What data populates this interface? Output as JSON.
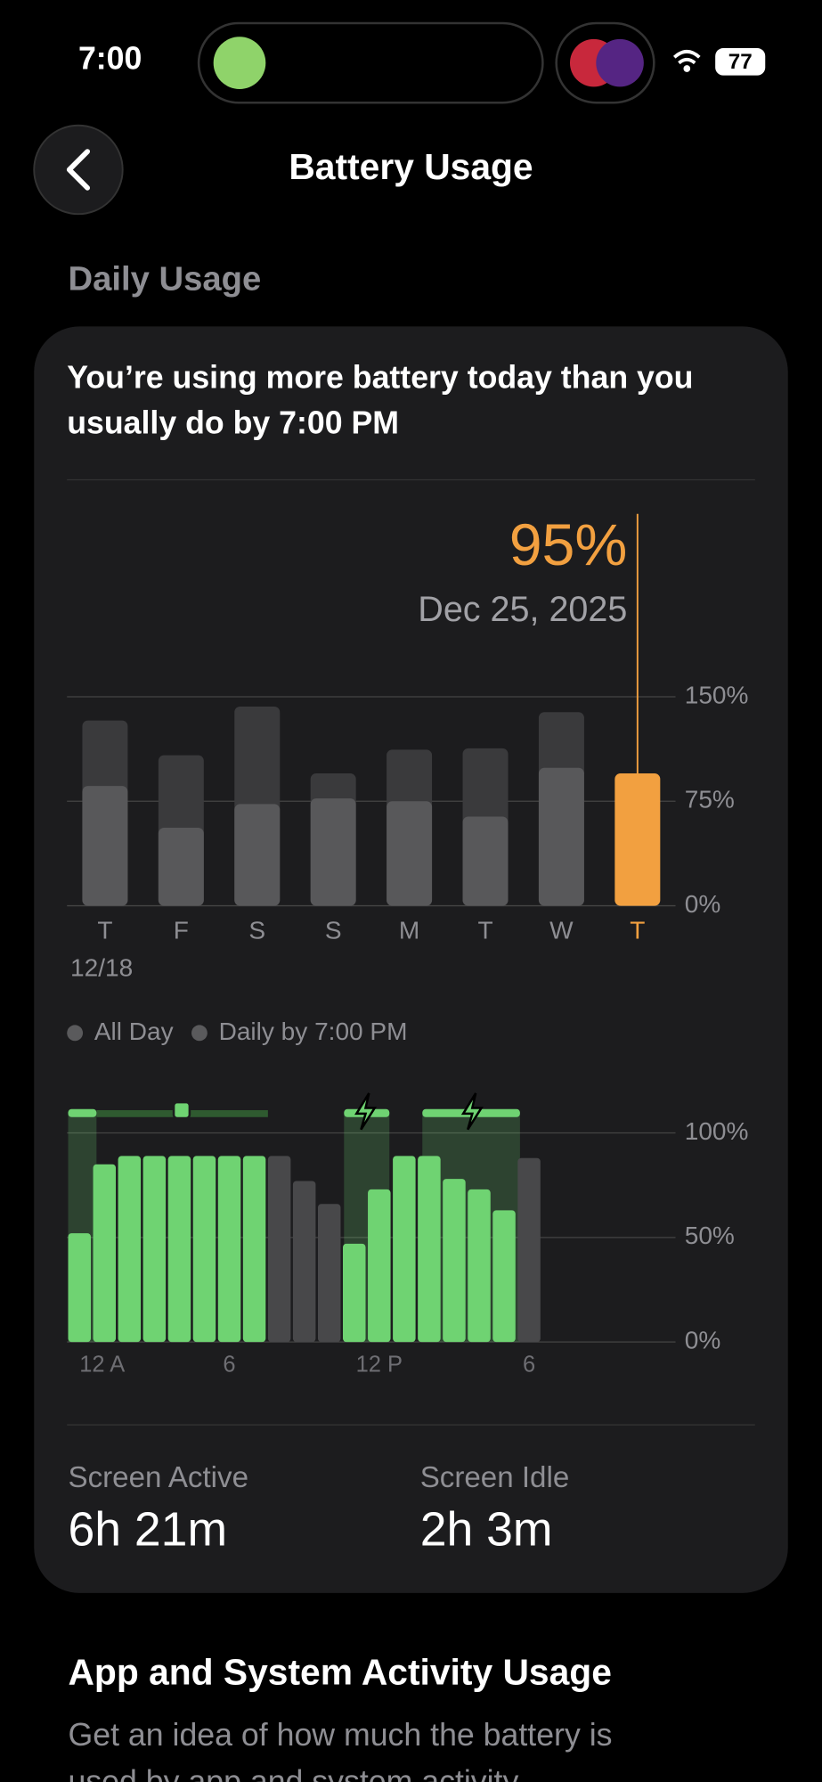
{
  "status_bar": {
    "time": "7:00",
    "battery": "77"
  },
  "header": {
    "title": "Battery Usage"
  },
  "daily_usage": {
    "section_title": "Daily Usage",
    "message": [
      "You’re using more battery today than you",
      "usually do by 7:00 PM"
    ],
    "date": "Dec 25, 2025"
  },
  "chart_data": [
    {
      "type": "bar",
      "categories": [
        "T",
        "F",
        "S",
        "S",
        "M",
        "T",
        "W",
        "T"
      ],
      "first_date": "12/18",
      "series": [
        {
          "name": "All Day",
          "color": "#3a3a3c",
          "values": [
            133,
            108,
            143,
            95,
            112,
            113,
            139,
            null
          ]
        },
        {
          "name": "Daily by 7:00 PM",
          "color": "#58585a",
          "values": [
            86,
            56,
            73,
            77,
            75,
            64,
            99,
            95
          ],
          "value_labels": [
            null,
            null,
            null,
            null,
            null,
            null,
            null,
            "95%"
          ]
        }
      ],
      "highlight_color": "#f2a040",
      "ylim": [
        0,
        150
      ],
      "yticks": [
        {
          "value": 0,
          "label": "0%"
        },
        {
          "value": 75,
          "label": "75%"
        },
        {
          "value": 150,
          "label": "150%"
        }
      ],
      "grid": true
    },
    {
      "type": "bar",
      "categories": [
        "12 A",
        null,
        null,
        null,
        null,
        null,
        "6",
        null,
        null,
        null,
        null,
        null,
        "12 P",
        null,
        null,
        null,
        null,
        null,
        "6"
      ],
      "values": [
        52,
        85,
        89,
        89,
        89,
        89,
        89,
        89,
        89,
        77,
        66,
        47,
        73,
        89,
        89,
        78,
        73,
        63,
        88
      ],
      "colors": [
        "#6fd372",
        "#6fd372",
        "#6fd372",
        "#6fd372",
        "#6fd372",
        "#6fd372",
        "#6fd372",
        "#6fd372",
        "#48484a",
        "#48484a",
        "#48484a",
        "#6fd372",
        "#6fd372",
        "#6fd372",
        "#6fd372",
        "#6fd372",
        "#6fd372",
        "#6fd372",
        "#48484a"
      ],
      "ylim": [
        0,
        100
      ],
      "yticks": [
        {
          "value": 0,
          "label": "0%"
        },
        {
          "value": 50,
          "label": "50%"
        },
        {
          "value": 100,
          "label": "100%"
        }
      ],
      "grid": true
    }
  ],
  "stats": [
    {
      "label": "Screen Active",
      "value": "6h 21m"
    },
    {
      "label": "Screen Idle",
      "value": "2h 3m"
    }
  ],
  "app_activity": {
    "title": "App and System Activity Usage",
    "description": [
      "Get an idea of how much the battery is",
      "used by app and system activity"
    ]
  }
}
